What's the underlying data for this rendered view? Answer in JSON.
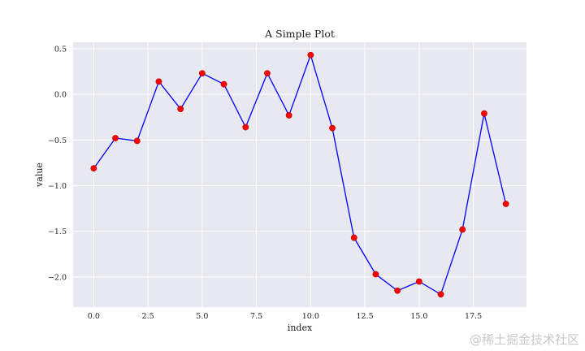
{
  "chart_data": {
    "type": "line",
    "title": "A Simple Plot",
    "xlabel": "index",
    "ylabel": "value",
    "xlim": [
      -0.95,
      19.95
    ],
    "ylim": [
      -2.33,
      0.57
    ],
    "x_ticks": [
      0.0,
      2.5,
      5.0,
      7.5,
      10.0,
      12.5,
      15.0,
      17.5
    ],
    "x_tick_labels": [
      "0.0",
      "2.5",
      "5.0",
      "7.5",
      "10.0",
      "12.5",
      "15.0",
      "17.5"
    ],
    "y_ticks": [
      0.5,
      0.0,
      -0.5,
      -1.0,
      -1.5,
      -2.0
    ],
    "y_tick_labels": [
      "0.5",
      "0.0",
      "−0.5",
      "−1.0",
      "−1.5",
      "−2.0"
    ],
    "grid": true,
    "series": [
      {
        "name": "value",
        "x": [
          0,
          1,
          2,
          3,
          4,
          5,
          6,
          7,
          8,
          9,
          10,
          11,
          12,
          13,
          14,
          15,
          16,
          17,
          18,
          19
        ],
        "values": [
          -0.81,
          -0.48,
          -0.51,
          0.14,
          -0.16,
          0.23,
          0.11,
          -0.36,
          0.23,
          -0.23,
          0.43,
          -0.37,
          -1.57,
          -1.97,
          -2.15,
          -2.05,
          -2.19,
          -1.48,
          -0.21,
          -1.2
        ],
        "line_color": "#0000ff",
        "marker_color": "#ff0000"
      }
    ]
  },
  "watermark": "@稀土掘金技术社区",
  "colors": {
    "plot_background": "#e8e8f1",
    "grid": "#ffffff"
  }
}
